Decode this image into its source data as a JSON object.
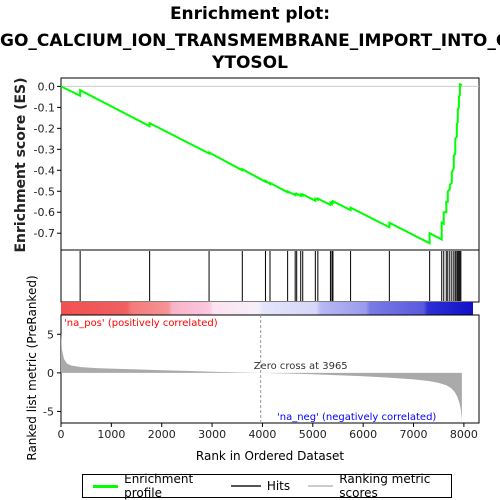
{
  "title_lines": [
    "Enrichment plot:",
    "GO_CALCIUM_ION_TRANSMEMBRANE_IMPORT_INTO_C",
    "YTOSOL"
  ],
  "colors": {
    "es_line": "#00ff00",
    "hits": "#000000",
    "pos_label": "#ff0000",
    "neg_label": "#0000ff",
    "zero_cross": "#999999",
    "metric_fill": "#aaaaaa"
  },
  "chart_data": [
    {
      "type": "line",
      "panel": "enrichment-score",
      "ylabel": "Enrichment score (ES)",
      "ylim": [
        -0.78,
        0.04
      ],
      "yticks": [
        0.0,
        -0.1,
        -0.2,
        -0.3,
        -0.4,
        -0.5,
        -0.6,
        -0.7
      ],
      "xlim": [
        0,
        8300
      ],
      "series": [
        {
          "x": [
            0,
            380,
            380,
            1760,
            1760,
            2940,
            2940,
            3600,
            3600,
            4060,
            4060,
            4150,
            4150,
            4500,
            4500,
            4650,
            4650,
            4680,
            4680,
            4760,
            4760,
            4800,
            4800,
            5050,
            5050,
            5100,
            5100,
            5350,
            5350,
            5380,
            5380,
            5400,
            5400,
            5750,
            5750,
            6520,
            6520,
            7320,
            7320,
            7560,
            7560,
            7600,
            7600,
            7650,
            7650,
            7680,
            7680,
            7720,
            7720,
            7760,
            7760,
            7800,
            7800,
            7830,
            7830,
            7860,
            7860,
            7880,
            7880,
            7900,
            7900,
            7920,
            7920,
            7940,
            7960
          ],
          "y": [
            0.0,
            -0.045,
            -0.018,
            -0.19,
            -0.175,
            -0.32,
            -0.315,
            -0.4,
            -0.395,
            -0.455,
            -0.45,
            -0.465,
            -0.46,
            -0.505,
            -0.5,
            -0.518,
            -0.513,
            -0.515,
            -0.512,
            -0.522,
            -0.515,
            -0.52,
            -0.515,
            -0.545,
            -0.535,
            -0.54,
            -0.535,
            -0.565,
            -0.555,
            -0.56,
            -0.552,
            -0.554,
            -0.548,
            -0.59,
            -0.578,
            -0.672,
            -0.65,
            -0.748,
            -0.7,
            -0.73,
            -0.65,
            -0.655,
            -0.6,
            -0.6,
            -0.55,
            -0.55,
            -0.5,
            -0.49,
            -0.47,
            -0.46,
            -0.41,
            -0.39,
            -0.33,
            -0.32,
            -0.25,
            -0.24,
            -0.18,
            -0.17,
            -0.11,
            -0.1,
            -0.05,
            -0.04,
            0.01,
            0.008,
            0.005
          ]
        }
      ]
    },
    {
      "type": "scatter",
      "panel": "hits",
      "label": "Hits",
      "x": [
        380,
        1760,
        2940,
        3600,
        4060,
        4150,
        4500,
        4650,
        4680,
        4760,
        4800,
        5050,
        5100,
        5350,
        5380,
        5400,
        5750,
        6520,
        7320,
        7560,
        7600,
        7650,
        7680,
        7720,
        7760,
        7800,
        7830,
        7860,
        7880,
        7900,
        7920,
        7940
      ]
    },
    {
      "type": "area",
      "panel": "ranked-list-metric",
      "ylabel": "Ranked list metric (PreRanked)",
      "xlabel": "Rank in Ordered Dataset",
      "ylim": [
        -6.5,
        7.5
      ],
      "yticks": [
        5,
        0,
        -5
      ],
      "xlim": [
        0,
        8300
      ],
      "xticks": [
        0,
        1000,
        2000,
        3000,
        4000,
        5000,
        6000,
        7000,
        8000
      ],
      "zero_cross": 3965,
      "zero_cross_label": "Zero cross at 3965",
      "pos_label": "'na_pos' (positively correlated)",
      "neg_label": "'na_neg' (negatively correlated)",
      "series": [
        {
          "x": [
            0,
            20,
            60,
            120,
            200,
            400,
            700,
            1000,
            1500,
            2000,
            2500,
            3000,
            3500,
            3965,
            4500,
            5000,
            5500,
            6000,
            6500,
            7000,
            7300,
            7500,
            7650,
            7750,
            7820,
            7870,
            7910,
            7940,
            7960
          ],
          "y": [
            5.2,
            3.0,
            1.8,
            1.2,
            0.95,
            0.75,
            0.62,
            0.55,
            0.45,
            0.35,
            0.25,
            0.15,
            0.06,
            0.0,
            -0.08,
            -0.18,
            -0.3,
            -0.45,
            -0.62,
            -0.85,
            -1.05,
            -1.3,
            -1.6,
            -2.0,
            -2.5,
            -3.1,
            -3.9,
            -4.8,
            -6.2
          ]
        }
      ]
    }
  ],
  "legend": {
    "items": [
      {
        "label": "Enrichment profile",
        "color": "#00ff00"
      },
      {
        "label": "Hits",
        "color": "#555555"
      },
      {
        "label": "Ranking metric scores",
        "color": "#cccccc"
      }
    ]
  }
}
